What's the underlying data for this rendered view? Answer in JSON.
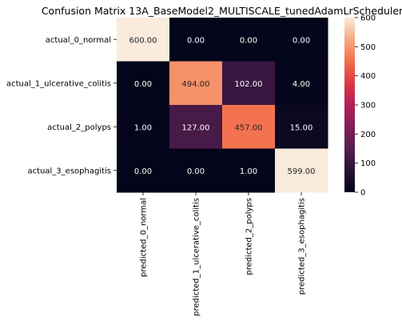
{
  "chart_data": {
    "type": "heatmap",
    "title": "Confusion Matrix 13A_BaseModel2_MULTISCALE_tunedAdamLrScheduler",
    "xlabel": "",
    "ylabel": "",
    "rows": [
      "actual_0_normal",
      "actual_1_ulcerative_colitis",
      "actual_2_polyps",
      "actual_3_esophagitis"
    ],
    "columns": [
      "predicted_0_normal",
      "predicted_1_ulcerative_colitis",
      "predicted_2_polyps",
      "predicted_3_esophagitis"
    ],
    "values": [
      [
        600,
        0,
        0,
        0
      ],
      [
        0,
        494,
        102,
        4
      ],
      [
        1,
        127,
        457,
        15
      ],
      [
        0,
        0,
        1,
        599
      ]
    ],
    "cell_labels": [
      [
        "600.00",
        "0.00",
        "0.00",
        "0.00"
      ],
      [
        "0.00",
        "494.00",
        "102.00",
        "4.00"
      ],
      [
        "1.00",
        "127.00",
        "457.00",
        "15.00"
      ],
      [
        "0.00",
        "0.00",
        "1.00",
        "599.00"
      ]
    ],
    "colorbar": {
      "range": [
        0,
        600
      ],
      "ticks": [
        "0",
        "100",
        "200",
        "300",
        "400",
        "500",
        "600"
      ],
      "colormap": "rocket"
    },
    "grid": false
  }
}
